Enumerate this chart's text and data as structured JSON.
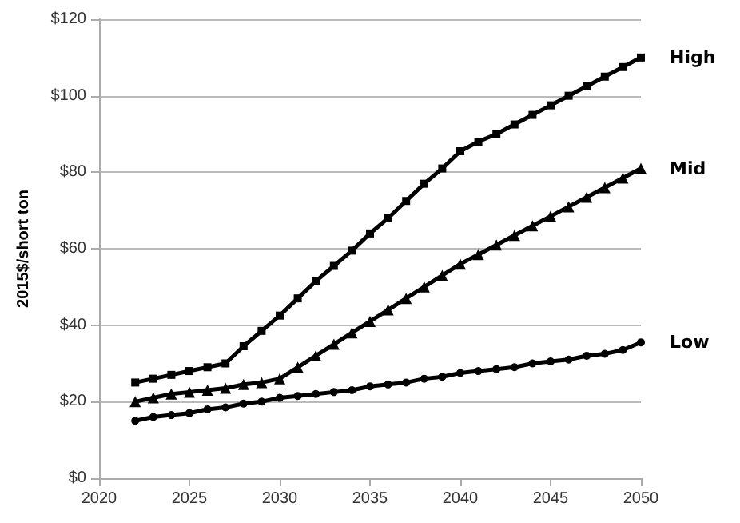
{
  "chart_data": {
    "type": "line",
    "ylabel": "2015$/short ton",
    "x": [
      2022,
      2023,
      2024,
      2025,
      2026,
      2027,
      2028,
      2029,
      2030,
      2031,
      2032,
      2033,
      2034,
      2035,
      2036,
      2037,
      2038,
      2039,
      2040,
      2041,
      2042,
      2043,
      2044,
      2045,
      2046,
      2047,
      2048,
      2049,
      2050
    ],
    "series": [
      {
        "name": "High",
        "color": "#000000",
        "marker": "square",
        "values": [
          25,
          26,
          27,
          28,
          29,
          30,
          34.5,
          38.5,
          42.5,
          47,
          51.5,
          55.5,
          59.5,
          64,
          68,
          72.5,
          77,
          81,
          85.5,
          88,
          90,
          92.5,
          95,
          97.5,
          100,
          102.5,
          105,
          107.5,
          110
        ]
      },
      {
        "name": "Mid",
        "color": "#000000",
        "marker": "triangle",
        "values": [
          20,
          21,
          22,
          22.5,
          23,
          23.5,
          24.5,
          25,
          26,
          29,
          32,
          35,
          38,
          41,
          44,
          47,
          50,
          53,
          56,
          58.5,
          61,
          63.5,
          66,
          68.5,
          71,
          73.5,
          76,
          78.5,
          81
        ]
      },
      {
        "name": "Low",
        "color": "#000000",
        "marker": "circle",
        "values": [
          15,
          16,
          16.5,
          17,
          18,
          18.5,
          19.5,
          20,
          21,
          21.5,
          22,
          22.5,
          23,
          24,
          24.5,
          25,
          26,
          26.5,
          27.5,
          28,
          28.5,
          29,
          30,
          30.5,
          31,
          32,
          32.5,
          33.5,
          35.5
        ]
      }
    ],
    "xlim": [
      2020,
      2050
    ],
    "xticks": [
      2020,
      2025,
      2030,
      2035,
      2040,
      2045,
      2050
    ],
    "ylim": [
      0,
      120
    ],
    "yticks": [
      {
        "value": 0,
        "label": "$0"
      },
      {
        "value": 20,
        "label": "$20"
      },
      {
        "value": 40,
        "label": "$40"
      },
      {
        "value": 60,
        "label": "$60"
      },
      {
        "value": 80,
        "label": "$80"
      },
      {
        "value": 100,
        "label": "$100"
      },
      {
        "value": 120,
        "label": "$120"
      }
    ],
    "grid": "y",
    "legend": false,
    "line_style": "solid"
  }
}
